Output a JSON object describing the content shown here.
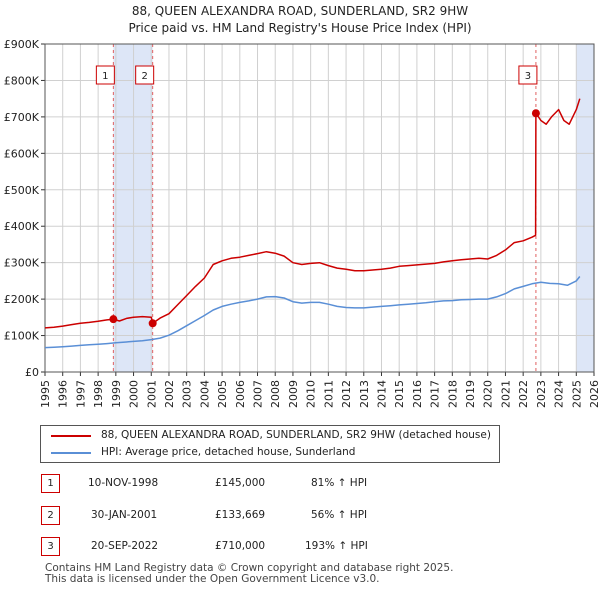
{
  "header": {
    "line1": "88, QUEEN ALEXANDRA ROAD, SUNDERLAND, SR2 9HW",
    "line2": "Price paid vs. HM Land Registry's House Price Index (HPI)"
  },
  "colors": {
    "property": "#cc0000",
    "hpi": "#5a8fd6",
    "shade": "#dde6f7",
    "grid": "#d0d0d0",
    "marker_line": "#e06060"
  },
  "chart_data": {
    "type": "line",
    "title": "88, QUEEN ALEXANDRA ROAD, SUNDERLAND, SR2 9HW — Price paid vs. HM Land Registry's House Price Index (HPI)",
    "xlabel": "",
    "ylabel": "",
    "xlim": [
      1995,
      2026
    ],
    "ylim": [
      0,
      900000
    ],
    "y_ticks": [
      {
        "value": 0,
        "label": "£0"
      },
      {
        "value": 100000,
        "label": "£100K"
      },
      {
        "value": 200000,
        "label": "£200K"
      },
      {
        "value": 300000,
        "label": "£300K"
      },
      {
        "value": 400000,
        "label": "£400K"
      },
      {
        "value": 500000,
        "label": "£500K"
      },
      {
        "value": 600000,
        "label": "£600K"
      },
      {
        "value": 700000,
        "label": "£700K"
      },
      {
        "value": 800000,
        "label": "£800K"
      },
      {
        "value": 900000,
        "label": "£900K"
      }
    ],
    "x_ticks": [
      "1995",
      "1996",
      "1997",
      "1998",
      "1999",
      "2000",
      "2001",
      "2002",
      "2003",
      "2004",
      "2005",
      "2006",
      "2007",
      "2008",
      "2009",
      "2010",
      "2011",
      "2012",
      "2013",
      "2014",
      "2015",
      "2016",
      "2017",
      "2018",
      "2019",
      "2020",
      "2021",
      "2022",
      "2023",
      "2024",
      "2025",
      "2026"
    ],
    "grid": true,
    "shaded_ranges": [
      [
        1998.86,
        2001.08
      ],
      [
        2025.0,
        2026.0
      ]
    ],
    "series": [
      {
        "name": "88, QUEEN ALEXANDRA ROAD, SUNDERLAND, SR2 9HW (detached house)",
        "x": [
          1995.0,
          1995.5,
          1996.0,
          1996.5,
          1997.0,
          1997.5,
          1998.0,
          1998.5,
          1998.86,
          1999.2,
          1999.6,
          2000.0,
          2000.5,
          2001.0,
          2001.08,
          2001.5,
          2002.0,
          2002.5,
          2003.0,
          2003.5,
          2004.0,
          2004.5,
          2005.0,
          2005.5,
          2006.0,
          2006.5,
          2007.0,
          2007.5,
          2008.0,
          2008.5,
          2009.0,
          2009.5,
          2010.0,
          2010.5,
          2011.0,
          2011.5,
          2012.0,
          2012.5,
          2013.0,
          2013.5,
          2014.0,
          2014.5,
          2015.0,
          2015.5,
          2016.0,
          2016.5,
          2017.0,
          2017.5,
          2018.0,
          2018.5,
          2019.0,
          2019.5,
          2020.0,
          2020.5,
          2021.0,
          2021.5,
          2022.0,
          2022.5,
          2022.7,
          2022.72,
          2023.0,
          2023.3,
          2023.6,
          2024.0,
          2024.3,
          2024.6,
          2025.0,
          2025.2
        ],
        "values": [
          121000,
          123000,
          126000,
          130000,
          134000,
          136000,
          139000,
          143000,
          145000,
          140000,
          147000,
          150000,
          152000,
          150000,
          133669,
          148000,
          160000,
          185000,
          210000,
          235000,
          258000,
          295000,
          305000,
          312000,
          315000,
          320000,
          325000,
          330000,
          326000,
          318000,
          300000,
          295000,
          298000,
          300000,
          292000,
          285000,
          282000,
          278000,
          278000,
          280000,
          282000,
          285000,
          290000,
          292000,
          294000,
          296000,
          298000,
          302000,
          305000,
          308000,
          310000,
          312000,
          310000,
          320000,
          335000,
          355000,
          360000,
          370000,
          375000,
          710000,
          690000,
          680000,
          700000,
          720000,
          690000,
          680000,
          720000,
          750000
        ]
      },
      {
        "name": "HPI: Average price, detached house, Sunderland",
        "x": [
          1995.0,
          1995.5,
          1996.0,
          1996.5,
          1997.0,
          1997.5,
          1998.0,
          1998.5,
          1999.0,
          1999.5,
          2000.0,
          2000.5,
          2001.0,
          2001.5,
          2002.0,
          2002.5,
          2003.0,
          2003.5,
          2004.0,
          2004.5,
          2005.0,
          2005.5,
          2006.0,
          2006.5,
          2007.0,
          2007.5,
          2008.0,
          2008.5,
          2009.0,
          2009.5,
          2010.0,
          2010.5,
          2011.0,
          2011.5,
          2012.0,
          2012.5,
          2013.0,
          2013.5,
          2014.0,
          2014.5,
          2015.0,
          2015.5,
          2016.0,
          2016.5,
          2017.0,
          2017.5,
          2018.0,
          2018.5,
          2019.0,
          2019.5,
          2020.0,
          2020.5,
          2021.0,
          2021.5,
          2022.0,
          2022.5,
          2023.0,
          2023.5,
          2024.0,
          2024.5,
          2025.0,
          2025.2
        ],
        "values": [
          67000,
          68000,
          69500,
          71000,
          73000,
          74500,
          76000,
          78000,
          80000,
          82000,
          84000,
          86000,
          89000,
          93000,
          101000,
          113000,
          127000,
          141000,
          155000,
          170000,
          180000,
          186000,
          191000,
          195000,
          200000,
          206000,
          207000,
          203000,
          193000,
          189000,
          191000,
          191000,
          186000,
          180000,
          177000,
          176000,
          176000,
          178000,
          180000,
          182000,
          184000,
          186000,
          188000,
          190000,
          193000,
          195000,
          196000,
          198000,
          199000,
          200000,
          200000,
          206000,
          215000,
          228000,
          235000,
          242000,
          246000,
          243000,
          242000,
          238000,
          250000,
          262000
        ]
      }
    ],
    "sales": [
      {
        "label": "1",
        "x": 1998.86,
        "value": 145000
      },
      {
        "label": "2",
        "x": 2001.08,
        "value": 133669
      },
      {
        "label": "3",
        "x": 2022.72,
        "value": 710000
      }
    ]
  },
  "legend": {
    "property_label": "88, QUEEN ALEXANDRA ROAD, SUNDERLAND, SR2 9HW (detached house)",
    "hpi_label": "HPI: Average price, detached house, Sunderland"
  },
  "sales_table": [
    {
      "num": "1",
      "date": "10-NOV-1998",
      "price": "£145,000",
      "hpi": "81% ↑ HPI"
    },
    {
      "num": "2",
      "date": "30-JAN-2001",
      "price": "£133,669",
      "hpi": "56% ↑ HPI"
    },
    {
      "num": "3",
      "date": "20-SEP-2022",
      "price": "£710,000",
      "hpi": "193% ↑ HPI"
    }
  ],
  "footer": {
    "line1": "Contains HM Land Registry data © Crown copyright and database right 2025.",
    "line2": "This data is licensed under the Open Government Licence v3.0."
  }
}
